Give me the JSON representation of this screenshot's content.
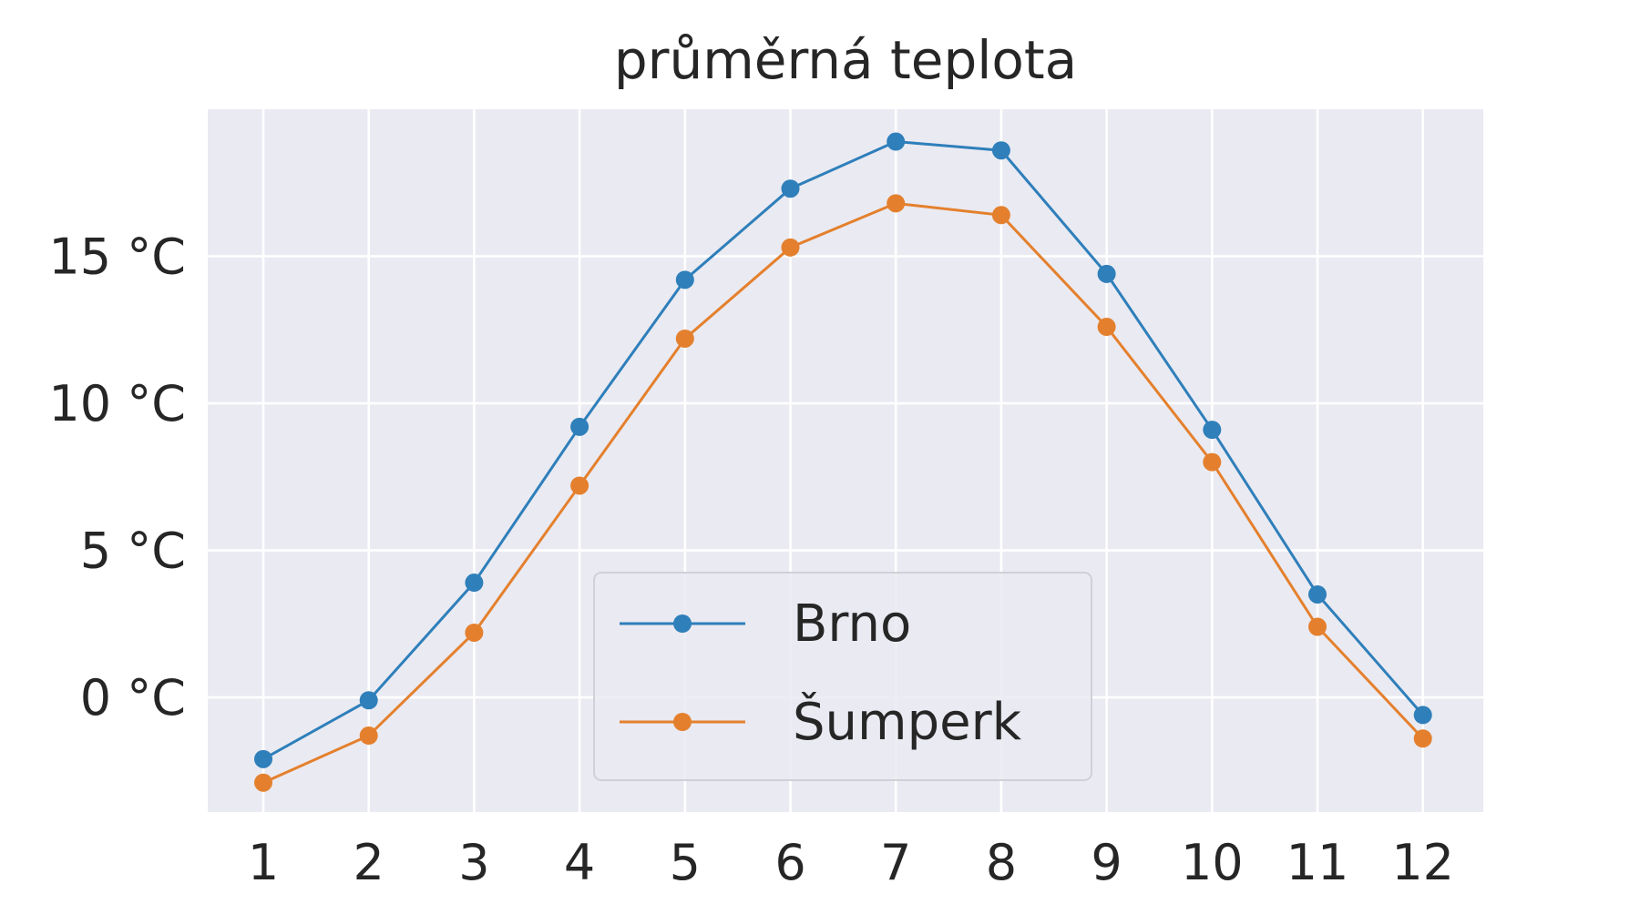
{
  "chart_data": {
    "type": "line",
    "title": "průměrná teplota",
    "xlabel": "",
    "ylabel": "",
    "categories": [
      1,
      2,
      3,
      4,
      5,
      6,
      7,
      8,
      9,
      10,
      11,
      12
    ],
    "x_tick_labels": [
      "1",
      "2",
      "3",
      "4",
      "5",
      "6",
      "7",
      "8",
      "9",
      "10",
      "11",
      "12"
    ],
    "y_ticks": [
      0,
      5,
      10,
      15
    ],
    "y_tick_labels": [
      "0 °C",
      "5 °C",
      "10 °C",
      "15 °C"
    ],
    "ylim": [
      -3.9,
      20.0
    ],
    "grid": true,
    "legend_position": "lower-center",
    "series": [
      {
        "name": "Brno",
        "color": "#2e7fba",
        "values": [
          -2.1,
          -0.1,
          3.9,
          9.2,
          14.2,
          17.3,
          18.9,
          18.6,
          14.4,
          9.1,
          3.5,
          -0.6
        ]
      },
      {
        "name": "Šumperk",
        "color": "#e4802d",
        "values": [
          -2.9,
          -1.3,
          2.2,
          7.2,
          12.2,
          15.3,
          16.8,
          16.4,
          12.6,
          8.0,
          2.4,
          -1.4
        ]
      }
    ],
    "colors": {
      "plot_background": "#eaeaf2",
      "grid": "#ffffff",
      "text": "#262626"
    }
  }
}
